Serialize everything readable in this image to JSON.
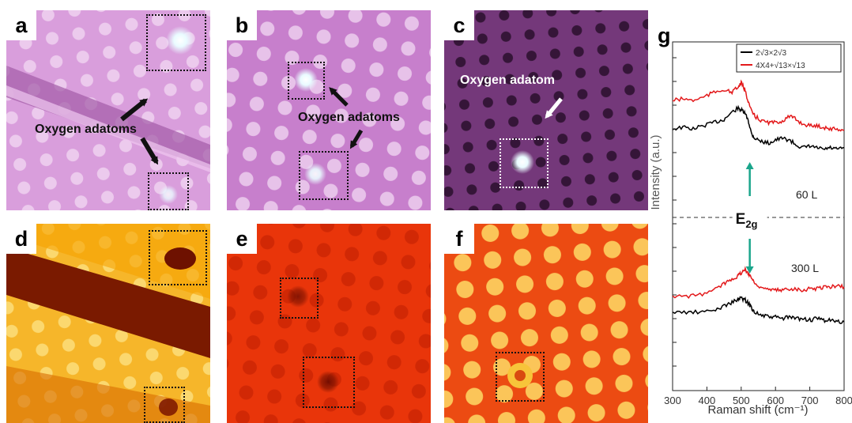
{
  "panels": {
    "a": {
      "label": "a",
      "annotation": "Oxygen adatoms"
    },
    "b": {
      "label": "b",
      "annotation": "Oxygen adatoms"
    },
    "c": {
      "label": "c",
      "annotation": "Oxygen adatom"
    },
    "d": {
      "label": "d"
    },
    "e": {
      "label": "e"
    },
    "f": {
      "label": "f"
    },
    "g": {
      "label": "g"
    }
  },
  "colors": {
    "purple_light": "#d79ad9",
    "purple_dark": "#7a3c7e",
    "orange": "#f5a400",
    "red": "#e02a00",
    "series_black": "#000000",
    "series_red": "#e31a1c",
    "e2g_arrow": "#1aa58b"
  },
  "chart_data": {
    "type": "line",
    "xlabel": "Raman shift (cm⁻¹)",
    "ylabel": "Intensity (a.u.)",
    "xlim": [
      300,
      800
    ],
    "xticks": [
      300,
      400,
      500,
      600,
      700,
      800
    ],
    "legend_position": "top-right",
    "legend": [
      "2√3×2√3",
      "4X4+√13×√13"
    ],
    "annotations": {
      "upper_dose": "60 L",
      "lower_dose": "300 L",
      "peak": "E2g"
    },
    "peak_position": 525,
    "series": [
      {
        "name": "2√3×2√3",
        "group": "60 L",
        "color": "#000000",
        "x": [
          300,
          330,
          360,
          390,
          420,
          450,
          470,
          490,
          500,
          510,
          520,
          530,
          540,
          560,
          580,
          600,
          620,
          640,
          660,
          680,
          700,
          720,
          740,
          760,
          780,
          800
        ],
        "y": [
          0.56,
          0.57,
          0.56,
          0.58,
          0.6,
          0.62,
          0.66,
          0.69,
          0.68,
          0.66,
          0.62,
          0.53,
          0.5,
          0.48,
          0.47,
          0.49,
          0.5,
          0.49,
          0.46,
          0.44,
          0.45,
          0.44,
          0.43,
          0.44,
          0.43,
          0.44
        ]
      },
      {
        "name": "4X4+√13×√13",
        "group": "60 L",
        "color": "#e31a1c",
        "x": [
          300,
          330,
          360,
          390,
          420,
          450,
          470,
          490,
          500,
          510,
          520,
          530,
          540,
          560,
          580,
          600,
          620,
          640,
          660,
          680,
          700,
          720,
          740,
          760,
          780,
          800
        ],
        "y": [
          0.74,
          0.75,
          0.74,
          0.76,
          0.79,
          0.81,
          0.79,
          0.82,
          0.85,
          0.81,
          0.74,
          0.67,
          0.64,
          0.61,
          0.6,
          0.6,
          0.61,
          0.64,
          0.62,
          0.59,
          0.58,
          0.58,
          0.57,
          0.56,
          0.56,
          0.55
        ]
      },
      {
        "name": "2√3×2√3",
        "group": "300 L",
        "color": "#000000",
        "x": [
          300,
          340,
          380,
          420,
          450,
          470,
          490,
          500,
          510,
          520,
          530,
          540,
          560,
          580,
          600,
          620,
          640,
          660,
          680,
          700,
          720,
          740,
          760,
          780,
          800
        ],
        "y": [
          -0.6,
          -0.6,
          -0.6,
          -0.59,
          -0.56,
          -0.54,
          -0.52,
          -0.51,
          -0.52,
          -0.54,
          -0.57,
          -0.6,
          -0.62,
          -0.63,
          -0.63,
          -0.64,
          -0.63,
          -0.64,
          -0.64,
          -0.65,
          -0.64,
          -0.65,
          -0.65,
          -0.66,
          -0.66
        ]
      },
      {
        "name": "4X4+√13×√13",
        "group": "300 L",
        "color": "#e31a1c",
        "x": [
          300,
          340,
          380,
          420,
          450,
          470,
          490,
          500,
          510,
          520,
          530,
          540,
          560,
          580,
          600,
          620,
          640,
          660,
          680,
          700,
          720,
          740,
          760,
          780,
          800
        ],
        "y": [
          -0.5,
          -0.5,
          -0.49,
          -0.46,
          -0.42,
          -0.39,
          -0.37,
          -0.35,
          -0.33,
          -0.35,
          -0.38,
          -0.42,
          -0.44,
          -0.46,
          -0.46,
          -0.46,
          -0.45,
          -0.45,
          -0.46,
          -0.45,
          -0.45,
          -0.44,
          -0.44,
          -0.43,
          -0.44
        ]
      }
    ]
  }
}
